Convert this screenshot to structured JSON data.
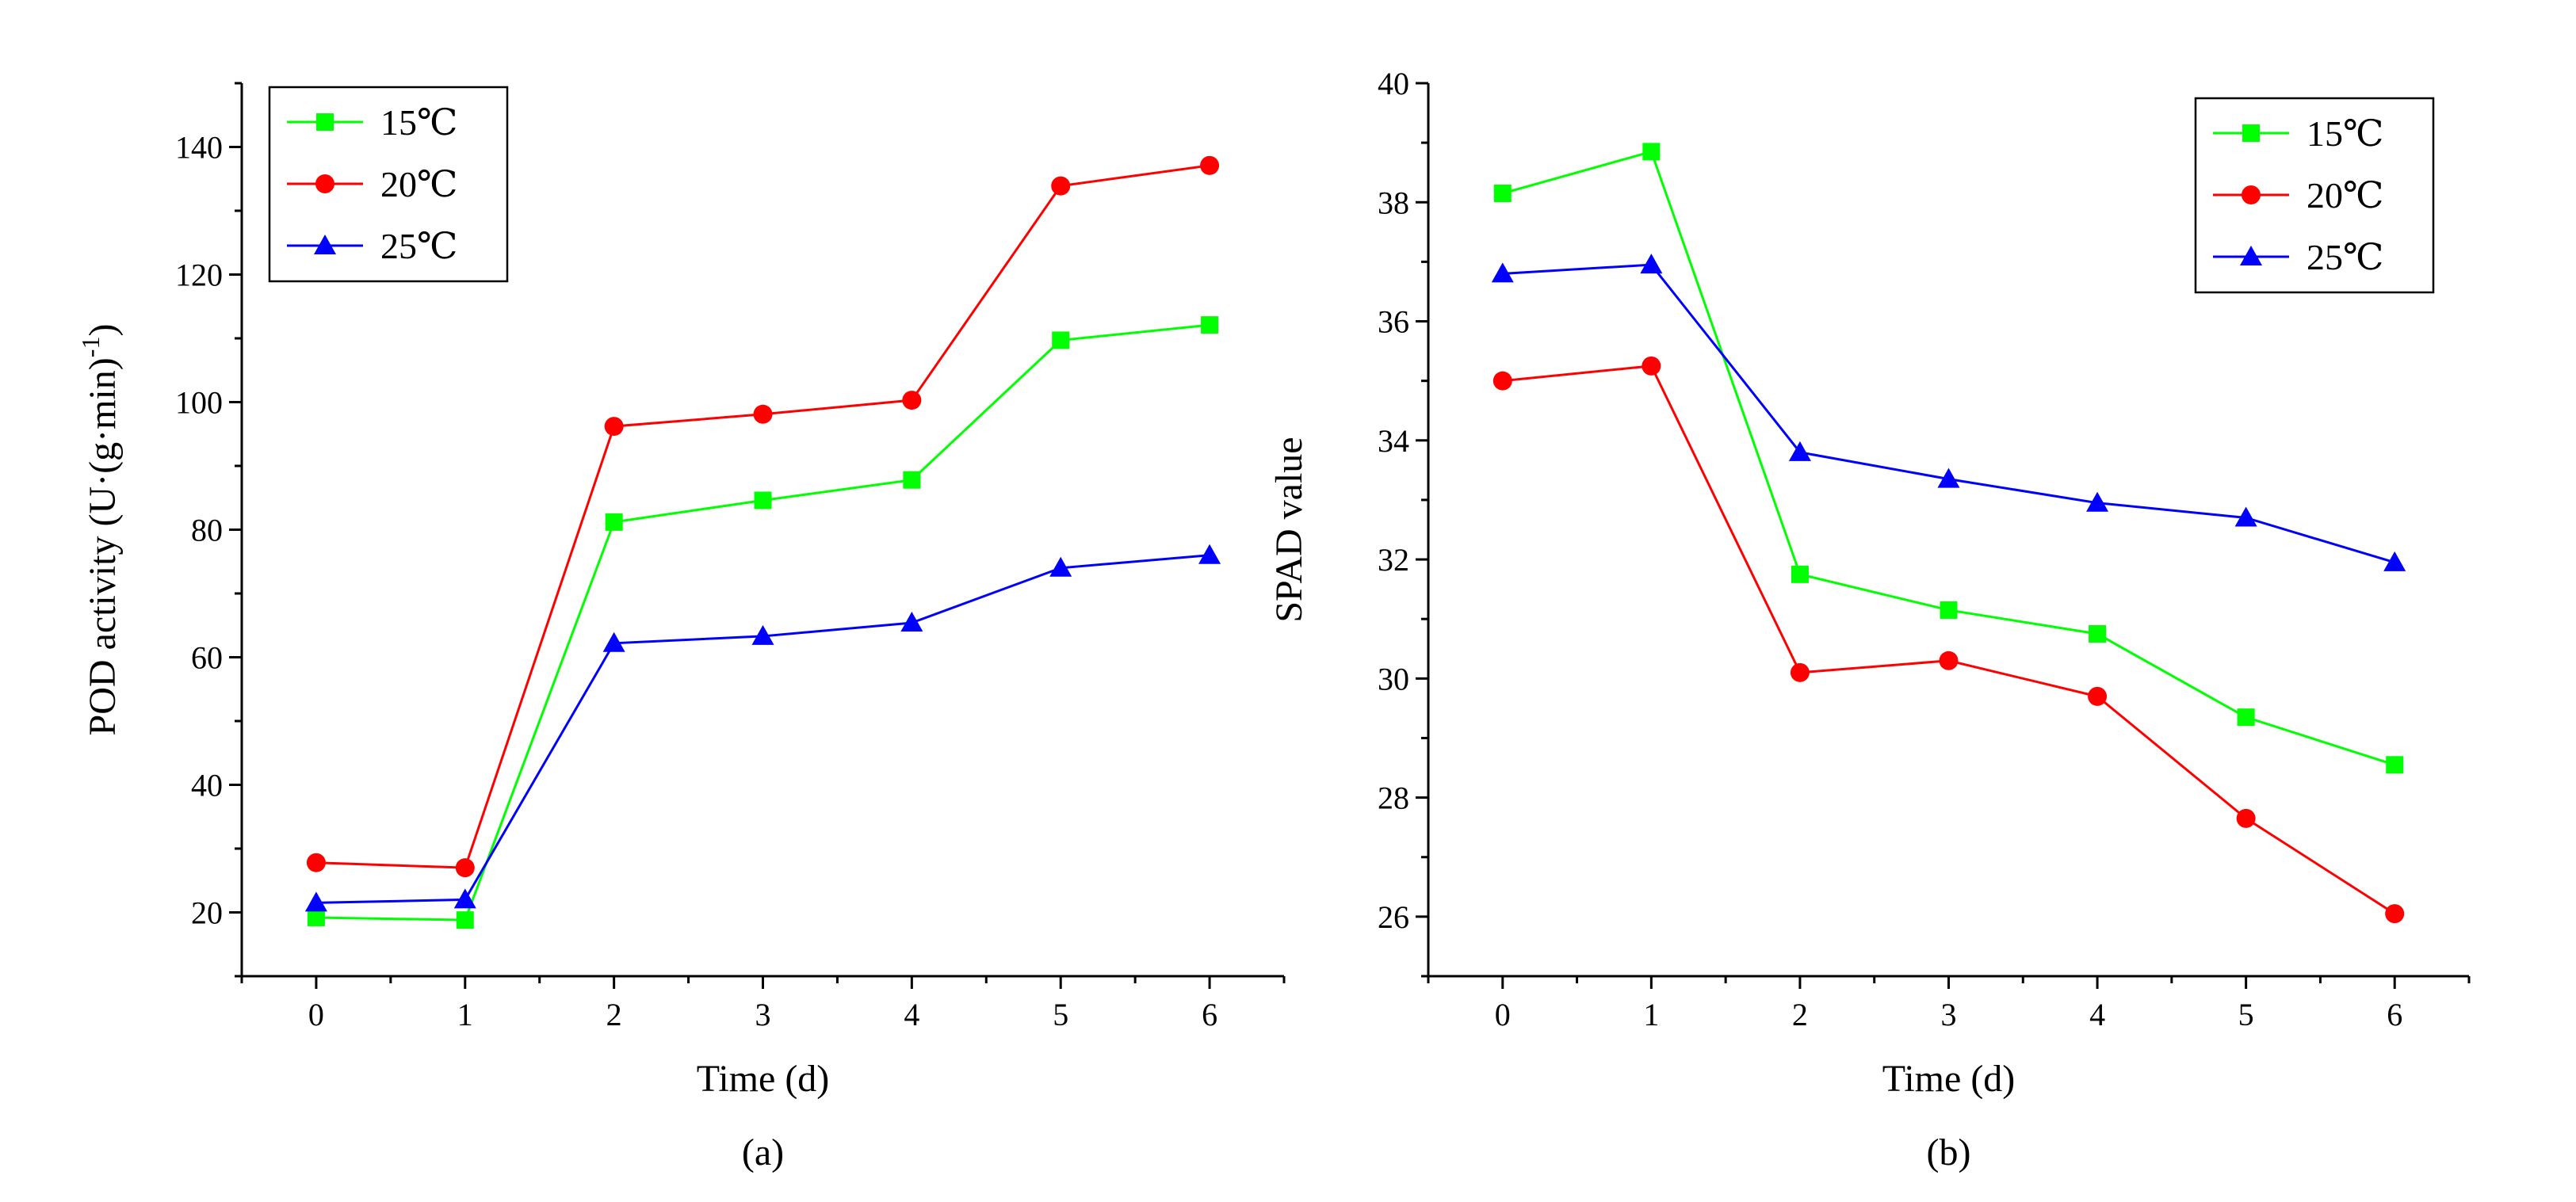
{
  "chart_data": [
    {
      "type": "line",
      "panel_label": "(a)",
      "xlabel": "Time (d)",
      "ylabel_main": "POD activity (U·(g·min)",
      "ylabel_sup": "-1",
      "ylabel_end": ")",
      "x": [
        0,
        1,
        2,
        3,
        4,
        5,
        6
      ],
      "xlim": [
        -0.5,
        6.5
      ],
      "ylim": [
        10,
        150
      ],
      "yticks": [
        20,
        40,
        60,
        80,
        100,
        120,
        140
      ],
      "legend_position": "top-left",
      "series": [
        {
          "name": "15℃",
          "color": "#00ff00",
          "marker": "square",
          "values": [
            19.2,
            18.8,
            81.2,
            84.6,
            87.8,
            109.7,
            112.1
          ]
        },
        {
          "name": "20℃",
          "color": "#ff0000",
          "marker": "circle",
          "values": [
            27.8,
            27.0,
            96.2,
            98.1,
            100.3,
            133.9,
            137.1
          ]
        },
        {
          "name": "25℃",
          "color": "#0000ff",
          "marker": "triangle",
          "values": [
            21.5,
            22.0,
            62.2,
            63.3,
            65.4,
            74.0,
            76.0
          ]
        }
      ]
    },
    {
      "type": "line",
      "panel_label": "(b)",
      "xlabel": "Time (d)",
      "ylabel_main": "SPAD value",
      "ylabel_sup": "",
      "ylabel_end": "",
      "x": [
        0,
        1,
        2,
        3,
        4,
        5,
        6
      ],
      "xlim": [
        -0.5,
        6.5
      ],
      "ylim": [
        25,
        40
      ],
      "yticks": [
        26,
        28,
        30,
        32,
        34,
        36,
        38,
        40
      ],
      "legend_position": "top-right",
      "series": [
        {
          "name": "15℃",
          "color": "#00ff00",
          "marker": "square",
          "values": [
            38.15,
            38.85,
            31.75,
            31.15,
            30.75,
            29.35,
            28.55
          ]
        },
        {
          "name": "20℃",
          "color": "#ff0000",
          "marker": "circle",
          "values": [
            35.0,
            35.25,
            30.1,
            30.3,
            29.7,
            27.65,
            26.05
          ]
        },
        {
          "name": "25℃",
          "color": "#0000ff",
          "marker": "triangle",
          "values": [
            36.8,
            36.95,
            33.8,
            33.35,
            32.95,
            32.7,
            31.95
          ]
        }
      ]
    }
  ]
}
